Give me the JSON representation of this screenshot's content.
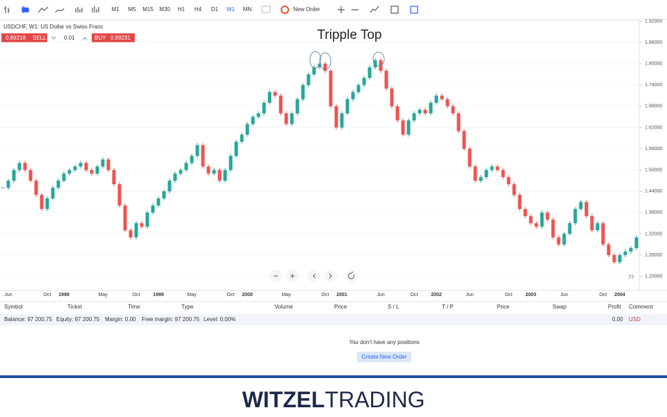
{
  "toolbar": {
    "timeframes": [
      "M1",
      "M5",
      "M15",
      "M30",
      "H1",
      "H4",
      "D1",
      "W1",
      "MN"
    ],
    "new_order": "New Order"
  },
  "instrument": {
    "title": "USDCHF, W1: US Dollar vs Swiss Franc",
    "sell_price": "0.89218",
    "sell": "SELL",
    "volume": "0.01",
    "buy": "BUY",
    "buy_price": "0.89231"
  },
  "chart_data": {
    "type": "candlestick",
    "annotation": "Tripple Top",
    "categories": [
      null,
      "Jun",
      null,
      null,
      null,
      null,
      null,
      null,
      "Oct",
      null,
      null,
      "1998",
      null,
      null,
      null,
      null,
      null,
      null,
      "May",
      null,
      null,
      null,
      null,
      null,
      "Oct",
      null,
      null,
      null,
      "1999",
      null,
      null,
      null,
      null,
      null,
      "May",
      null,
      null,
      null,
      null,
      null,
      null,
      "Oct",
      null,
      null,
      "2000",
      null,
      null,
      null,
      null,
      null,
      null,
      "May",
      null,
      null,
      null,
      null,
      null,
      null,
      "Oct",
      null,
      null,
      "2001",
      null,
      null,
      null,
      null,
      null,
      null,
      "Jun",
      null,
      null,
      null,
      null,
      null,
      "Oct",
      null,
      null,
      null,
      "2002",
      null,
      null,
      null,
      null,
      null,
      "Jun",
      null,
      null,
      null,
      null,
      null,
      null,
      "Oct",
      null,
      null,
      null,
      "2003",
      null,
      null,
      null,
      null,
      null,
      "Jun",
      null,
      null,
      null,
      null,
      null,
      null,
      "Oct",
      null,
      null,
      "2004",
      null,
      null,
      null
    ],
    "close": [
      1.45,
      1.47,
      1.5,
      1.52,
      1.5,
      1.47,
      1.43,
      1.39,
      1.42,
      1.45,
      1.47,
      1.49,
      1.5,
      1.51,
      1.52,
      1.5,
      1.49,
      1.51,
      1.53,
      1.5,
      1.46,
      1.4,
      1.33,
      1.31,
      1.35,
      1.34,
      1.38,
      1.4,
      1.42,
      1.44,
      1.47,
      1.49,
      1.5,
      1.52,
      1.54,
      1.57,
      1.51,
      1.49,
      1.5,
      1.47,
      1.5,
      1.54,
      1.58,
      1.6,
      1.63,
      1.65,
      1.66,
      1.69,
      1.72,
      1.71,
      1.66,
      1.63,
      1.66,
      1.7,
      1.74,
      1.77,
      1.79,
      1.8,
      1.78,
      1.68,
      1.62,
      1.66,
      1.7,
      1.72,
      1.74,
      1.76,
      1.79,
      1.81,
      1.78,
      1.73,
      1.68,
      1.64,
      1.6,
      1.64,
      1.66,
      1.67,
      1.66,
      1.69,
      1.71,
      1.7,
      1.68,
      1.66,
      1.61,
      1.56,
      1.51,
      1.47,
      1.48,
      1.5,
      1.51,
      1.5,
      1.48,
      1.46,
      1.43,
      1.39,
      1.37,
      1.35,
      1.34,
      1.38,
      1.36,
      1.31,
      1.29,
      1.32,
      1.35,
      1.39,
      1.41,
      1.37,
      1.33,
      1.35,
      1.29,
      1.26,
      1.24,
      1.26,
      1.27,
      1.28,
      1.31
    ],
    "up_color": "#26a69a",
    "down_color": "#ef5350",
    "ylim": [
      1.16,
      1.925
    ],
    "yticks": [
      {
        "value": 1.92,
        "label": "1.92000"
      },
      {
        "value": 1.86,
        "label": "1.86000"
      },
      {
        "value": 1.8,
        "label": "1.80000"
      },
      {
        "value": 1.74,
        "label": "1.74000"
      },
      {
        "value": 1.68,
        "label": "1.68000"
      },
      {
        "value": 1.62,
        "label": "1.62000"
      },
      {
        "value": 1.56,
        "label": "1.56000"
      },
      {
        "value": 1.5,
        "label": "1.50000"
      },
      {
        "value": 1.44,
        "label": "1.44000"
      },
      {
        "value": 1.38,
        "label": "1.38000"
      },
      {
        "value": 1.32,
        "label": "1.32000"
      },
      {
        "value": 1.26,
        "label": "1.26000"
      },
      {
        "value": 1.2,
        "label": "1.20000"
      }
    ],
    "grid": true
  },
  "positions": {
    "columns": [
      "Symbol",
      "Ticket",
      "Time",
      "Type",
      "Volume",
      "Price",
      "S / L",
      "T / P",
      "Price",
      "Swap",
      "Profit",
      "Comment"
    ],
    "balance": "Balance: 97 200.75",
    "equity": "Equity: 97 200.75",
    "margin": "Margin: 0.00",
    "free_margin": "Free margin: 97 200.75",
    "level": "Level: 0.00%",
    "profit": "0.00",
    "currency": "USD",
    "empty": "You don't have any positions",
    "button": "Create New Order"
  },
  "footer": {
    "logo_bold": "WITZEL",
    "logo_light": "TRADING"
  }
}
